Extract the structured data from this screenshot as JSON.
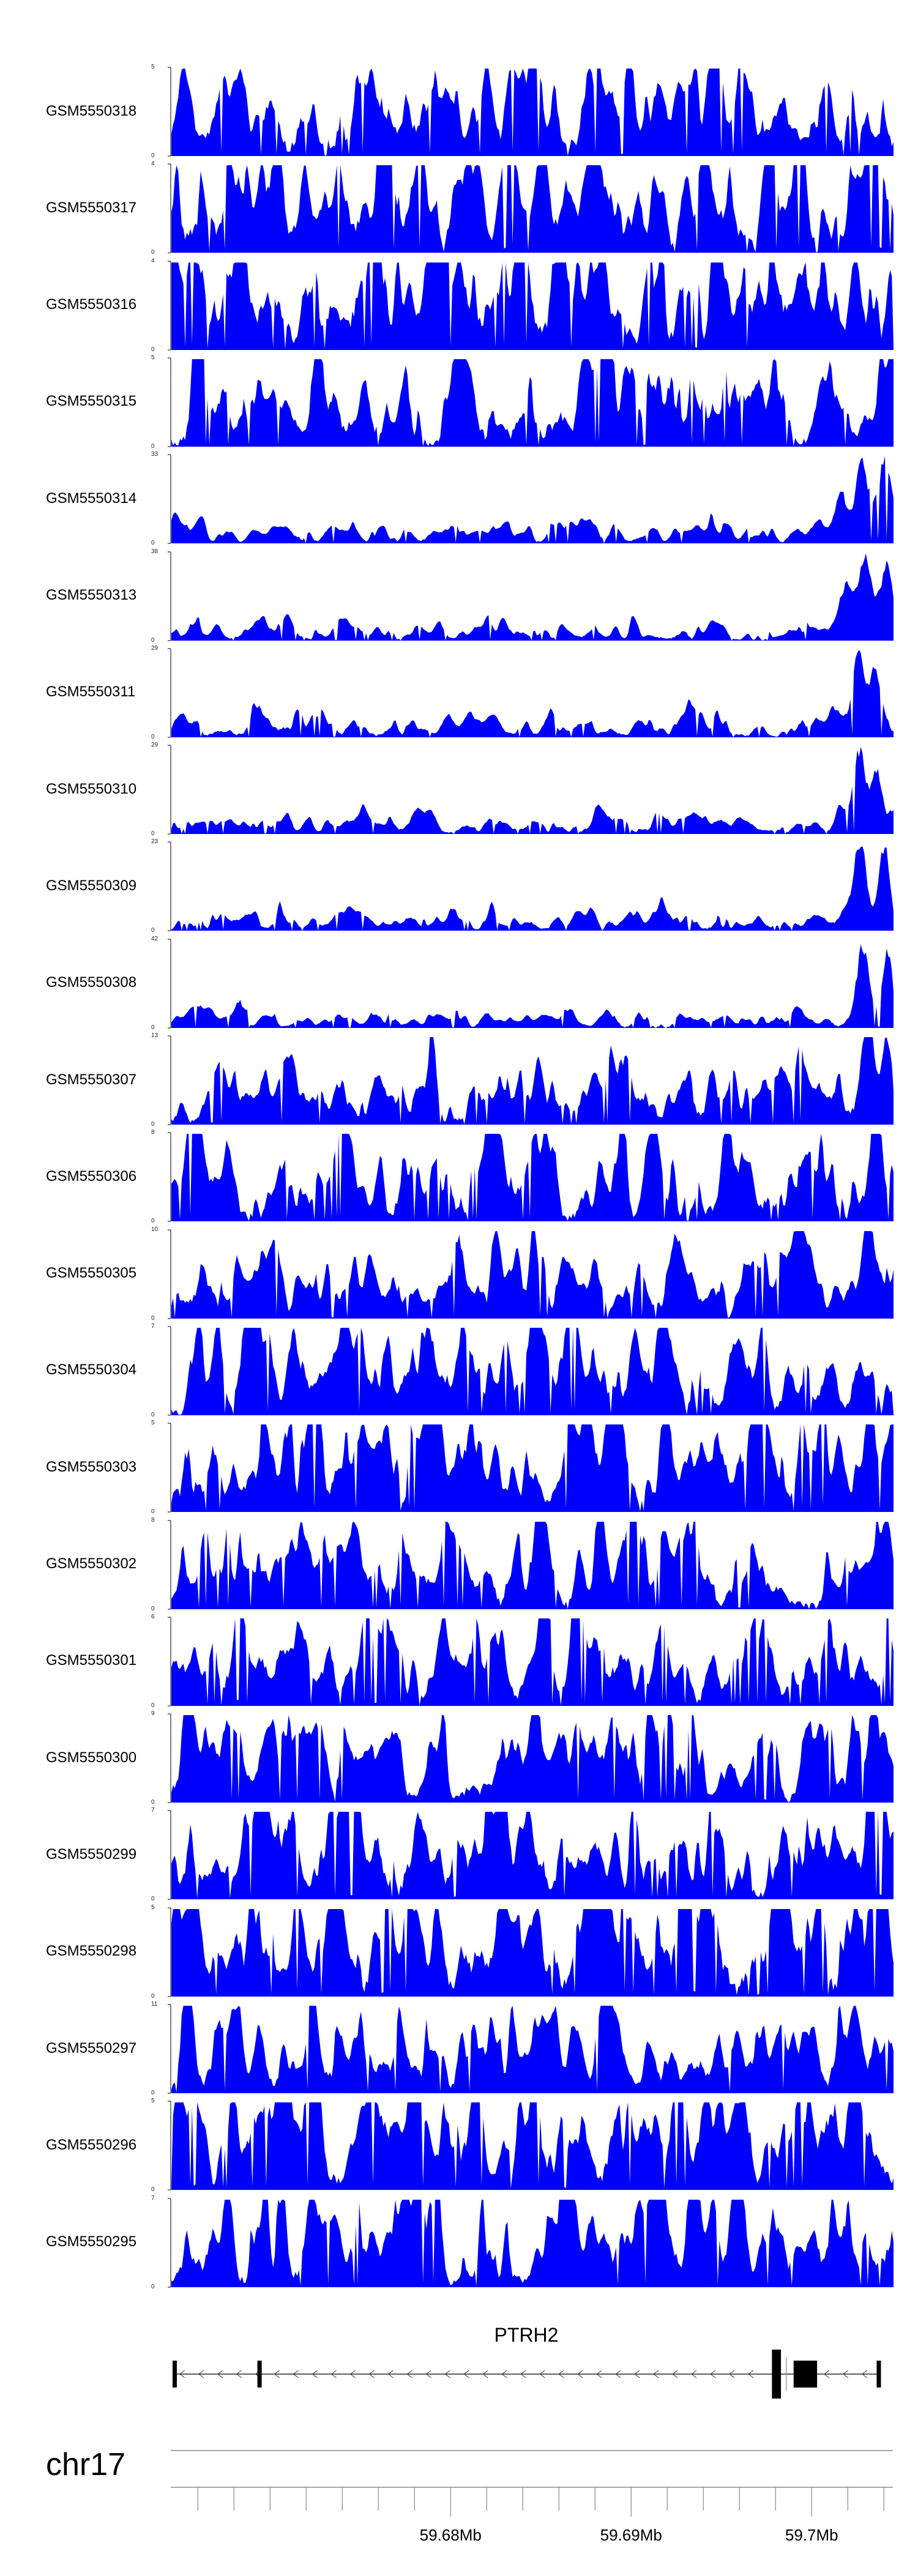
{
  "chart_data": {
    "type": "area",
    "color": "#0000ff",
    "tracks": [
      {
        "name": "GSM5550318",
        "ymax": "5",
        "ymin": "0",
        "max": 5,
        "seed": 318,
        "base": 0.32,
        "variance": 0.3,
        "peaks": [
          [
            0.63,
            0.85,
            0.008
          ]
        ]
      },
      {
        "name": "GSM5550317",
        "ymax": "4",
        "ymin": "0",
        "max": 4,
        "seed": 317,
        "base": 0.35,
        "variance": 0.38,
        "peaks": [
          [
            0.74,
            0.9,
            0.01
          ]
        ]
      },
      {
        "name": "GSM5550316",
        "ymax": "4",
        "ymin": "0",
        "max": 4,
        "seed": 316,
        "base": 0.4,
        "variance": 0.4,
        "peaks": []
      },
      {
        "name": "GSM5550315",
        "ymax": "5",
        "ymin": "0",
        "max": 5,
        "seed": 315,
        "base": 0.28,
        "variance": 0.32,
        "peaks": [
          [
            0.2,
            0.85,
            0.01
          ],
          [
            0.595,
            0.65,
            0.01
          ]
        ]
      },
      {
        "name": "GSM5550314",
        "ymax": "33",
        "ymin": "0",
        "max": 33,
        "seed": 314,
        "base": 0.05,
        "variance": 0.09,
        "peaks": [
          [
            0.955,
            0.88,
            0.014
          ],
          [
            0.985,
            0.95,
            0.012
          ],
          [
            0.925,
            0.55,
            0.01
          ]
        ]
      },
      {
        "name": "GSM5550313",
        "ymax": "38",
        "ymin": "0",
        "max": 38,
        "seed": 313,
        "base": 0.04,
        "variance": 0.08,
        "peaks": [
          [
            0.958,
            0.92,
            0.012
          ],
          [
            0.99,
            0.75,
            0.01
          ],
          [
            0.93,
            0.5,
            0.01
          ]
        ]
      },
      {
        "name": "GSM5550311",
        "ymax": "29",
        "ymin": "0",
        "max": 29,
        "seed": 311,
        "base": 0.06,
        "variance": 0.09,
        "peaks": [
          [
            0.95,
            0.95,
            0.012
          ],
          [
            0.975,
            0.55,
            0.01
          ]
        ]
      },
      {
        "name": "GSM5550310",
        "ymax": "29",
        "ymin": "0",
        "max": 29,
        "seed": 310,
        "base": 0.05,
        "variance": 0.08,
        "peaks": [
          [
            0.95,
            0.95,
            0.012
          ],
          [
            0.975,
            0.7,
            0.01
          ]
        ]
      },
      {
        "name": "GSM5550309",
        "ymax": "23",
        "ymin": "0",
        "max": 23,
        "seed": 309,
        "base": 0.06,
        "variance": 0.08,
        "peaks": [
          [
            0.95,
            0.95,
            0.012
          ],
          [
            0.985,
            0.7,
            0.01
          ]
        ]
      },
      {
        "name": "GSM5550308",
        "ymax": "42",
        "ymin": "0",
        "max": 42,
        "seed": 308,
        "base": 0.04,
        "variance": 0.07,
        "peaks": [
          [
            0.955,
            0.95,
            0.012
          ],
          [
            0.99,
            0.85,
            0.01
          ],
          [
            0.095,
            0.25,
            0.008
          ]
        ]
      },
      {
        "name": "GSM5550307",
        "ymax": "13",
        "ymin": "0",
        "max": 13,
        "seed": 307,
        "base": 0.18,
        "variance": 0.22,
        "peaks": [
          [
            0.965,
            0.95,
            0.01
          ],
          [
            0.99,
            0.85,
            0.008
          ]
        ]
      },
      {
        "name": "GSM5550306",
        "ymax": "8",
        "ymin": "0",
        "max": 8,
        "seed": 306,
        "base": 0.26,
        "variance": 0.32,
        "peaks": [
          [
            0.44,
            0.65,
            0.008
          ],
          [
            0.97,
            0.95,
            0.008
          ]
        ]
      },
      {
        "name": "GSM5550305",
        "ymax": "10",
        "ymin": "0",
        "max": 10,
        "seed": 305,
        "base": 0.22,
        "variance": 0.28,
        "peaks": [
          [
            0.4,
            0.85,
            0.008
          ],
          [
            0.96,
            0.95,
            0.008
          ]
        ]
      },
      {
        "name": "GSM5550304",
        "ymax": "7",
        "ymin": "0",
        "max": 7,
        "seed": 304,
        "base": 0.24,
        "variance": 0.35,
        "peaks": [
          [
            0.68,
            0.95,
            0.006
          ]
        ]
      },
      {
        "name": "GSM5550303",
        "ymax": "5",
        "ymin": "0",
        "max": 5,
        "seed": 303,
        "base": 0.3,
        "variance": 0.42,
        "peaks": [
          [
            0.165,
            0.95,
            0.005
          ]
        ]
      },
      {
        "name": "GSM5550302",
        "ymax": "8",
        "ymin": "0",
        "max": 8,
        "seed": 302,
        "base": 0.22,
        "variance": 0.32,
        "peaks": [
          [
            0.59,
            0.95,
            0.006
          ]
        ]
      },
      {
        "name": "GSM5550301",
        "ymax": "6",
        "ymin": "0",
        "max": 6,
        "seed": 301,
        "base": 0.28,
        "variance": 0.35,
        "peaks": [
          [
            0.095,
            0.85,
            0.008
          ],
          [
            0.91,
            0.85,
            0.012
          ]
        ]
      },
      {
        "name": "GSM5550300",
        "ymax": "9",
        "ymin": "0",
        "max": 9,
        "seed": 300,
        "base": 0.26,
        "variance": 0.35,
        "peaks": [
          [
            0.66,
            0.85,
            0.007
          ],
          [
            0.97,
            0.95,
            0.008
          ]
        ]
      },
      {
        "name": "GSM5550299",
        "ymax": "7",
        "ymin": "0",
        "max": 7,
        "seed": 299,
        "base": 0.3,
        "variance": 0.35,
        "peaks": [
          [
            0.965,
            0.95,
            0.007
          ]
        ]
      },
      {
        "name": "GSM5550298",
        "ymax": "5",
        "ymin": "0",
        "max": 5,
        "seed": 298,
        "base": 0.42,
        "variance": 0.42,
        "peaks": []
      },
      {
        "name": "GSM5550297",
        "ymax": "11",
        "ymin": "0",
        "max": 11,
        "seed": 297,
        "base": 0.22,
        "variance": 0.32,
        "peaks": [
          [
            0.47,
            0.95,
            0.006
          ]
        ]
      },
      {
        "name": "GSM5550296",
        "ymax": "5",
        "ymin": "0",
        "max": 5,
        "seed": 296,
        "base": 0.4,
        "variance": 0.38,
        "peaks": [
          [
            0.2,
            0.95,
            0.006
          ]
        ]
      },
      {
        "name": "GSM5550295",
        "ymax": "7",
        "ymin": "0",
        "max": 7,
        "seed": 295,
        "base": 0.3,
        "variance": 0.38,
        "peaks": [
          [
            0.55,
            0.95,
            0.006
          ]
        ]
      }
    ],
    "gene": {
      "name": "PTRH2",
      "strand": "-",
      "start": 59.6646,
      "end": 59.7038,
      "exons": [
        [
          59.6646,
          59.6648,
          "thin"
        ],
        [
          59.6693,
          59.6695,
          "thin"
        ],
        [
          59.6978,
          59.6983,
          "thick"
        ],
        [
          59.699,
          59.7003,
          "thick"
        ],
        [
          59.7036,
          59.7038,
          "thin"
        ]
      ],
      "marker_line": 59.6986
    },
    "axis": {
      "chromosome": "chr17",
      "xlim": [
        59.6645,
        59.7045
      ],
      "ticks": [
        59.666,
        59.668,
        59.67,
        59.672,
        59.674,
        59.676,
        59.678,
        59.68,
        59.682,
        59.684,
        59.686,
        59.688,
        59.69,
        59.692,
        59.694,
        59.696,
        59.698,
        59.7,
        59.702,
        59.704
      ],
      "labels": [
        {
          "value": 59.68,
          "text": "59.68Mb"
        },
        {
          "value": 59.69,
          "text": "59.69Mb"
        },
        {
          "value": 59.7,
          "text": "59.7Mb"
        }
      ]
    }
  }
}
